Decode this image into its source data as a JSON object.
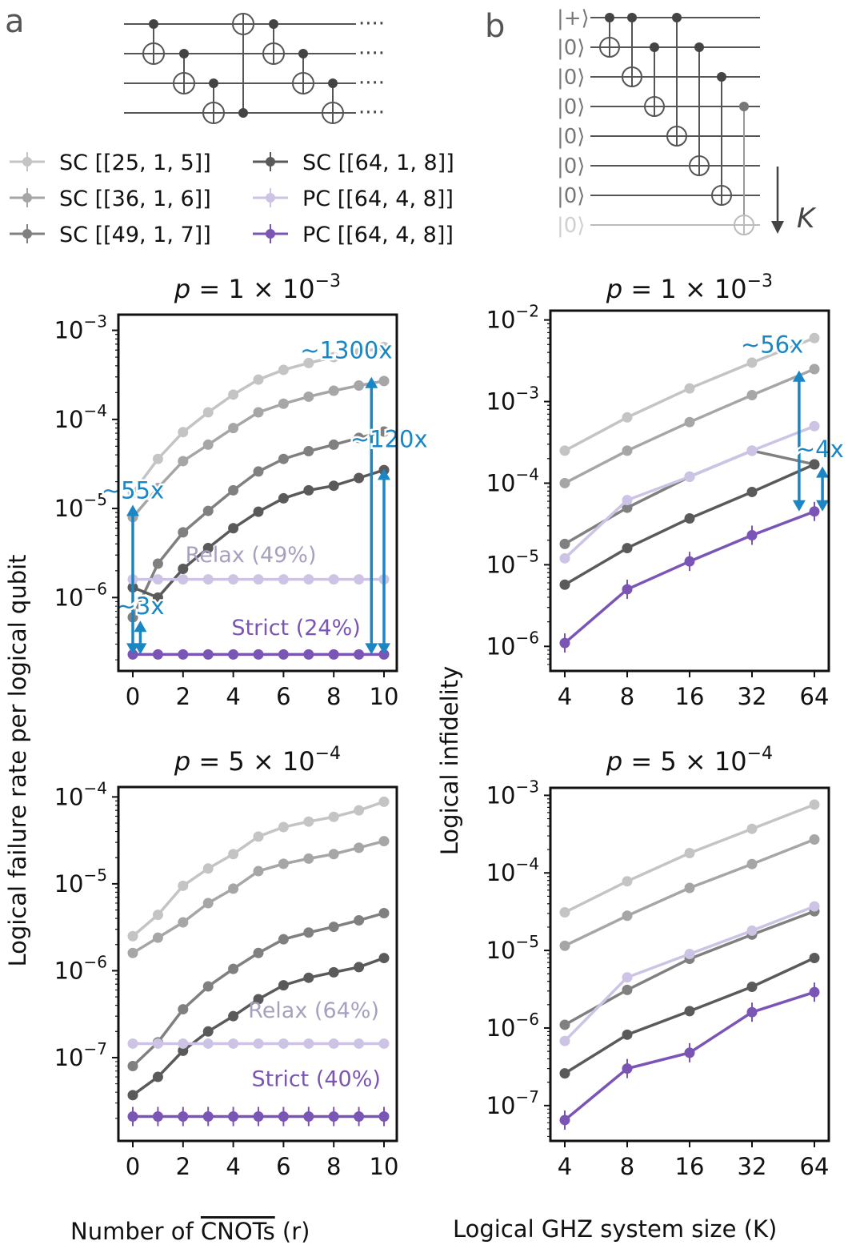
{
  "panel_labels": {
    "a": "a",
    "b": "b"
  },
  "circuits": {
    "a_ellipsis": "····",
    "b_kets": [
      "|+⟩",
      "|0⟩",
      "|0⟩",
      "|0⟩",
      "|0⟩",
      "|0⟩",
      "|0⟩",
      "|0⟩"
    ],
    "b_arrow_label": "K"
  },
  "legend": [
    {
      "label": "SC [[25, 1, 5]]",
      "color": "#c4c4c4"
    },
    {
      "label": "SC [[36, 1, 6]]",
      "color": "#a6a6a6"
    },
    {
      "label": "SC [[49, 1, 7]]",
      "color": "#808080"
    },
    {
      "label": "SC [[64, 1, 8]]",
      "color": "#5a5a5a"
    },
    {
      "label": "PC [[64, 4, 8]]",
      "color": "#cdc3e5"
    },
    {
      "label": "PC [[64, 4, 8]]",
      "color": "#7a55b5"
    }
  ],
  "axis_titles": {
    "left_y": "Logical failure rate per logical qubit",
    "right_y": "Logical infidelity",
    "left_x_prefix": "Number of ",
    "left_x_over": "CNOTs",
    "left_x_suffix": " (r)",
    "right_x": "Logical GHZ system size (K)"
  },
  "chart_data": [
    {
      "type": "line",
      "title": "p = 1 × 10^-3",
      "title_parts": {
        "p": "p",
        "eq": " = 1 × 10",
        "exp": "−3"
      },
      "x": [
        0,
        1,
        2,
        3,
        4,
        5,
        6,
        7,
        8,
        9,
        10
      ],
      "x_ticks": [
        "0",
        "2",
        "4",
        "6",
        "8",
        "10"
      ],
      "y_scale": "log",
      "y_ticks": [
        {
          "base": "10",
          "exp": "−3"
        },
        {
          "base": "10",
          "exp": "−4"
        },
        {
          "base": "10",
          "exp": "−5"
        },
        {
          "base": "10",
          "exp": "−6"
        }
      ],
      "series": [
        {
          "name": "SC [[25, 1, 5]]",
          "values": [
            1.5e-05,
            3.6e-05,
            7.2e-05,
            0.00012,
            0.00019,
            0.00028,
            0.00036,
            0.00043,
            0.0005,
            0.00056,
            0.00065
          ]
        },
        {
          "name": "SC [[36, 1, 6]]",
          "values": [
            8e-06,
            1.7e-05,
            3.4e-05,
            5.2e-05,
            8e-05,
            0.00012,
            0.00015,
            0.00018,
            0.00021,
            0.00024,
            0.00027
          ]
        },
        {
          "name": "SC [[49, 1, 7]]",
          "values": [
            6e-07,
            2.4e-06,
            5.4e-06,
            9.4e-06,
            1.6e-05,
            2.6e-05,
            3.6e-05,
            4.4e-05,
            5.2e-05,
            6.2e-05,
            7.3e-05
          ]
        },
        {
          "name": "SC [[64, 1, 8]]",
          "values": [
            1.3e-06,
            1e-06,
            2.1e-06,
            3.6e-06,
            6e-06,
            9.2e-06,
            1.3e-05,
            1.6e-05,
            1.8e-05,
            2.2e-05,
            2.7e-05
          ]
        },
        {
          "name": "PC [[64, 4, 8]] relax",
          "values": [
            1.6e-06,
            1.6e-06,
            1.6e-06,
            1.6e-06,
            1.6e-06,
            1.6e-06,
            1.6e-06,
            1.6e-06,
            1.6e-06,
            1.6e-06,
            1.6e-06
          ]
        },
        {
          "name": "PC [[64, 4, 8]] strict",
          "values": [
            2.3e-07,
            2.3e-07,
            2.3e-07,
            2.3e-07,
            2.3e-07,
            2.3e-07,
            2.3e-07,
            2.3e-07,
            2.3e-07,
            2.3e-07,
            2.3e-07
          ]
        }
      ],
      "annotations": [
        {
          "text": "~55x",
          "x": 0,
          "from": 1.1e-05,
          "to": 2.3e-07,
          "lx": 0,
          "ly": 1.6e-05
        },
        {
          "text": "~3x",
          "x": 0.3,
          "from": 5.5e-07,
          "to": 2.3e-07,
          "lx": 0.3,
          "ly": 8e-07
        },
        {
          "text": "~1300x",
          "x": 9.5,
          "from": 0.0003,
          "to": 2.3e-07,
          "lx": 8.5,
          "ly": 0.0006
        },
        {
          "text": "~120x",
          "x": 10,
          "from": 2.8e-05,
          "to": 2.3e-07,
          "lx": 10.2,
          "ly": 6e-05
        }
      ],
      "labels": [
        {
          "text": "Relax (49%)",
          "x": 4.7,
          "y": 2.5e-06,
          "color": "#a9a0c0"
        },
        {
          "text": "Strict (24%)",
          "x": 6.5,
          "y": 3.8e-07,
          "color": "#7a55b5"
        }
      ]
    },
    {
      "type": "line",
      "title": "p = 1 × 10^-3",
      "title_parts": {
        "p": "p",
        "eq": " = 1 × 10",
        "exp": "−3"
      },
      "x": [
        4,
        8,
        16,
        32,
        64
      ],
      "x_scale": "log2",
      "x_ticks": [
        "4",
        "8",
        "16",
        "32",
        "64"
      ],
      "y_scale": "log",
      "y_ticks": [
        {
          "base": "10",
          "exp": "−2"
        },
        {
          "base": "10",
          "exp": "−3"
        },
        {
          "base": "10",
          "exp": "−4"
        },
        {
          "base": "10",
          "exp": "−5"
        },
        {
          "base": "10",
          "exp": "−6"
        }
      ],
      "series": [
        {
          "name": "SC [[25, 1, 5]]",
          "values": [
            0.00025,
            0.00064,
            0.00145,
            0.003,
            0.006
          ]
        },
        {
          "name": "SC [[36, 1, 6]]",
          "values": [
            0.0001,
            0.00025,
            0.00056,
            0.0012,
            0.0025
          ]
        },
        {
          "name": "SC [[49, 1, 7]]",
          "values": [
            1.8e-05,
            5e-05,
            0.00012,
            0.00025,
            0.00017
          ]
        },
        {
          "name": "SC [[64, 1, 8]]",
          "values": [
            5.7e-06,
            1.6e-05,
            3.7e-05,
            7.8e-05,
            0.00017
          ]
        },
        {
          "name": "PC [[64, 4, 8]] relax",
          "values": [
            1.2e-05,
            6.2e-05,
            0.00012,
            0.00025,
            0.0005
          ]
        },
        {
          "name": "PC [[64, 4, 8]] strict",
          "values": [
            1.1e-06,
            5e-06,
            1.1e-05,
            2.3e-05,
            4.5e-05
          ]
        }
      ],
      "annotations": [
        {
          "text": "~56x",
          "x": 54,
          "from": 0.0024,
          "to": 4.5e-05,
          "lx": 40,
          "ly": 0.005
        },
        {
          "text": "~4x",
          "x": 70,
          "from": 0.00016,
          "to": 4.5e-05,
          "lx": 68,
          "ly": 0.00026
        }
      ]
    },
    {
      "type": "line",
      "title": "p = 5 × 10^-4",
      "title_parts": {
        "p": "p",
        "eq": " = 5 × 10",
        "exp": "−4"
      },
      "x": [
        0,
        1,
        2,
        3,
        4,
        5,
        6,
        7,
        8,
        9,
        10
      ],
      "x_ticks": [
        "0",
        "2",
        "4",
        "6",
        "8",
        "10"
      ],
      "y_scale": "log",
      "y_ticks": [
        {
          "base": "10",
          "exp": "−4"
        },
        {
          "base": "10",
          "exp": "−5"
        },
        {
          "base": "10",
          "exp": "−6"
        },
        {
          "base": "10",
          "exp": "−7"
        }
      ],
      "series": [
        {
          "name": "SC [[25, 1, 5]]",
          "values": [
            2.5e-06,
            4.4e-06,
            9.5e-06,
            1.5e-05,
            2.2e-05,
            3.5e-05,
            4.5e-05,
            5.2e-05,
            5.9e-05,
            7e-05,
            8.8e-05
          ]
        },
        {
          "name": "SC [[36, 1, 6]]",
          "values": [
            1.6e-06,
            2.4e-06,
            3.6e-06,
            6e-06,
            8.8e-06,
            1.4e-05,
            1.7e-05,
            1.95e-05,
            2.2e-05,
            2.6e-05,
            3.1e-05
          ]
        },
        {
          "name": "SC [[49, 1, 7]]",
          "values": [
            8e-08,
            1.5e-07,
            3.6e-07,
            6.6e-07,
            1.05e-06,
            1.6e-06,
            2.3e-06,
            2.75e-06,
            3.2e-06,
            3.8e-06,
            4.6e-06
          ]
        },
        {
          "name": "SC [[64, 1, 8]]",
          "values": [
            3.7e-08,
            6e-08,
            1.2e-07,
            2e-07,
            3e-07,
            4.7e-07,
            6.8e-07,
            8.3e-07,
            9.6e-07,
            1.1e-06,
            1.4e-06
          ]
        },
        {
          "name": "PC [[64, 4, 8]] relax",
          "values": [
            1.45e-07,
            1.45e-07,
            1.45e-07,
            1.45e-07,
            1.45e-07,
            1.45e-07,
            1.45e-07,
            1.45e-07,
            1.45e-07,
            1.45e-07,
            1.45e-07
          ]
        },
        {
          "name": "PC [[64, 4, 8]] strict",
          "values": [
            2.1e-08,
            2.1e-08,
            2.1e-08,
            2.1e-08,
            2.1e-08,
            2.1e-08,
            2.1e-08,
            2.1e-08,
            2.1e-08,
            2.1e-08,
            2.1e-08
          ]
        }
      ],
      "labels": [
        {
          "text": "Relax (64%)",
          "x": 7.2,
          "y": 2.9e-07,
          "color": "#a9a0c0"
        },
        {
          "text": "Strict (40%)",
          "x": 7.3,
          "y": 4.7e-08,
          "color": "#7a55b5"
        }
      ]
    },
    {
      "type": "line",
      "title": "p = 5 × 10^-4",
      "title_parts": {
        "p": "p",
        "eq": " = 5 × 10",
        "exp": "−4"
      },
      "x": [
        4,
        8,
        16,
        32,
        64
      ],
      "x_scale": "log2",
      "x_ticks": [
        "4",
        "8",
        "16",
        "32",
        "64"
      ],
      "y_scale": "log",
      "y_ticks": [
        {
          "base": "10",
          "exp": "−3"
        },
        {
          "base": "10",
          "exp": "−4"
        },
        {
          "base": "10",
          "exp": "−5"
        },
        {
          "base": "10",
          "exp": "−6"
        },
        {
          "base": "10",
          "exp": "−7"
        }
      ],
      "series": [
        {
          "name": "SC [[25, 1, 5]]",
          "values": [
            3.1e-05,
            7.8e-05,
            0.00018,
            0.00037,
            0.00076
          ]
        },
        {
          "name": "SC [[36, 1, 6]]",
          "values": [
            1.15e-05,
            2.8e-05,
            6.4e-05,
            0.00013,
            0.00027
          ]
        },
        {
          "name": "SC [[49, 1, 7]]",
          "values": [
            1.1e-06,
            3.1e-06,
            7.8e-06,
            1.6e-05,
            3.2e-05
          ]
        },
        {
          "name": "SC [[64, 1, 8]]",
          "values": [
            2.6e-07,
            8.2e-07,
            1.65e-06,
            3.4e-06,
            8e-06
          ]
        },
        {
          "name": "PC [[64, 4, 8]] relax",
          "values": [
            6.8e-07,
            4.5e-06,
            9e-06,
            1.8e-05,
            3.7e-05
          ]
        },
        {
          "name": "PC [[64, 4, 8]] strict",
          "values": [
            6.5e-08,
            3e-07,
            4.8e-07,
            1.6e-06,
            2.9e-06
          ]
        }
      ]
    }
  ]
}
